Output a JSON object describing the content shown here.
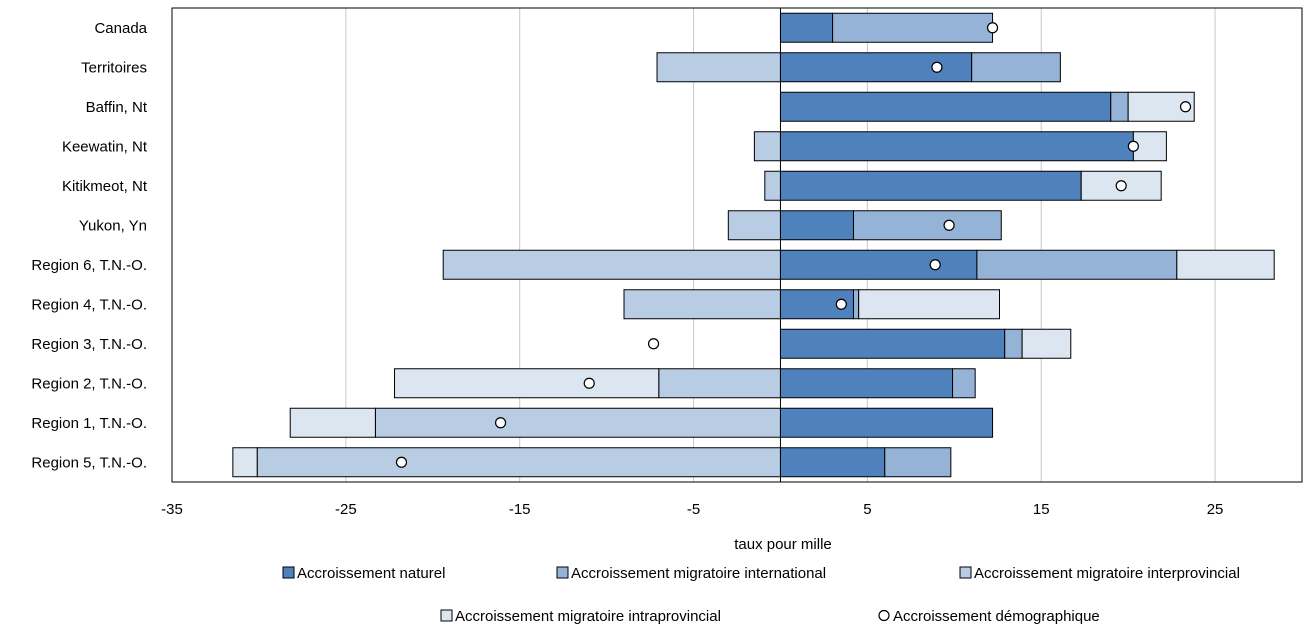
{
  "chart_data": {
    "type": "bar",
    "orientation": "horizontal",
    "stacked": true,
    "title": "",
    "xlabel": "taux pour mille",
    "ylabel": "",
    "xlim": [
      -35,
      30
    ],
    "xticks": [
      -35,
      -25,
      -15,
      -5,
      5,
      15,
      25
    ],
    "grid": true,
    "legend_position": "bottom",
    "categories": [
      "Canada",
      "Territoires",
      "Baffin, Nt",
      "Keewatin, Nt",
      "Kitikmeot, Nt",
      "Yukon, Yn",
      "Region 6, T.N.-O.",
      "Region 4, T.N.-O.",
      "Region 3, T.N.-O.",
      "Region 2, T.N.-O.",
      "Region 1, T.N.-O.",
      "Region 5, T.N.-O."
    ],
    "series": [
      {
        "name": "Accroissement naturel",
        "color": "#4f81bd",
        "values": [
          3.0,
          11.0,
          19.0,
          20.3,
          17.3,
          4.2,
          11.3,
          4.2,
          12.9,
          9.9,
          12.2,
          6.0
        ]
      },
      {
        "name": "Accroissement migratoire international",
        "color": "#95b3d7",
        "values": [
          9.2,
          5.1,
          1.0,
          0,
          0,
          8.5,
          11.5,
          0.3,
          1.0,
          1.3,
          0,
          3.8
        ]
      },
      {
        "name": "Accroissement migratoire interprovincial",
        "color": "#b8cce4",
        "values": [
          0,
          -7.1,
          0,
          -1.5,
          -0.9,
          -3.0,
          -19.4,
          -9.0,
          0,
          -7.0,
          -23.3,
          -30.1
        ]
      },
      {
        "name": "Accroissement migratoire intraprovincial",
        "color": "#dce6f1",
        "values": [
          0,
          0,
          3.8,
          1.9,
          4.6,
          0,
          5.6,
          8.1,
          2.8,
          -15.2,
          -4.9,
          -1.4
        ]
      }
    ],
    "points": {
      "name": "Accroissement démographique",
      "values": [
        12.2,
        9.0,
        23.3,
        20.3,
        19.6,
        9.7,
        8.9,
        3.5,
        -7.3,
        -11.0,
        -16.1,
        -21.8
      ]
    }
  }
}
